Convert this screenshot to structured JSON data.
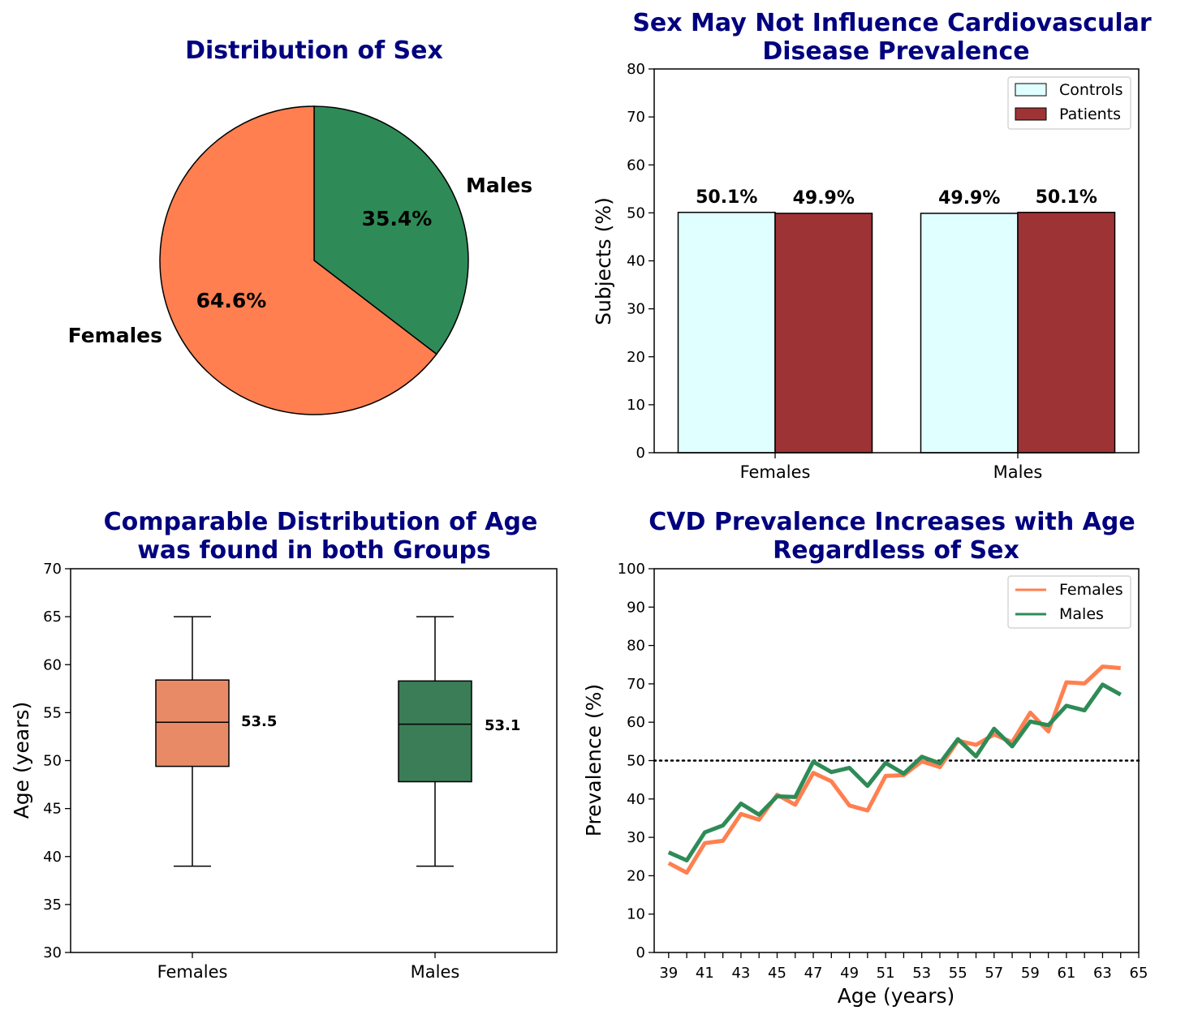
{
  "colors": {
    "title": "#00007f",
    "females": "#ff7f50",
    "males": "#2e8b57",
    "controls": "#e0ffff",
    "patients": "#9e3336",
    "box_females": "#e98a66",
    "box_males": "#3a7d57"
  },
  "chart_data": [
    {
      "type": "pie",
      "title": "Distribution of Sex",
      "labels": [
        "Males",
        "Females"
      ],
      "values": [
        35.4,
        64.6
      ],
      "pct_labels": [
        "35.4%",
        "64.6%"
      ]
    },
    {
      "type": "bar",
      "title_lines": [
        "Sex May Not Influence Cardiovascular",
        "Disease Prevalence"
      ],
      "categories": [
        "Females",
        "Males"
      ],
      "series": [
        {
          "name": "Controls",
          "values": [
            50.1,
            49.9
          ],
          "labels": [
            "50.1%",
            "49.9%"
          ]
        },
        {
          "name": "Patients",
          "values": [
            49.9,
            50.1
          ],
          "labels": [
            "49.9%",
            "50.1%"
          ]
        }
      ],
      "ylabel": "Subjects (%)",
      "ylim": [
        0,
        80
      ],
      "yticks": [
        0,
        10,
        20,
        30,
        40,
        50,
        60,
        70,
        80
      ],
      "legend": "top-right"
    },
    {
      "type": "box",
      "title_lines": [
        "Comparable Distribution of Age",
        "was found in both Groups"
      ],
      "categories": [
        "Females",
        "Males"
      ],
      "ylabel": "Age (years)",
      "ylim": [
        30,
        70
      ],
      "yticks": [
        30,
        35,
        40,
        45,
        50,
        55,
        60,
        65,
        70
      ],
      "boxes": [
        {
          "min": 39,
          "q1": 49.4,
          "median": 54,
          "q3": 58.4,
          "max": 65,
          "mean_label": "53.5"
        },
        {
          "min": 39,
          "q1": 47.8,
          "median": 53.8,
          "q3": 58.3,
          "max": 65,
          "mean_label": "53.1"
        }
      ]
    },
    {
      "type": "line",
      "title_lines": [
        "CVD Prevalence Increases with Age",
        "Regardless of Sex"
      ],
      "xlabel": "Age (years)",
      "ylabel": "Prevalence (%)",
      "xlim": [
        38.2,
        65.0
      ],
      "ylim": [
        0,
        100
      ],
      "xticks": [
        39,
        41,
        43,
        45,
        47,
        49,
        51,
        53,
        55,
        57,
        59,
        61,
        63,
        65
      ],
      "yticks": [
        0,
        10,
        20,
        30,
        40,
        50,
        60,
        70,
        80,
        90,
        100
      ],
      "reference_line": 50,
      "legend": "top-right",
      "x": [
        39,
        40,
        41,
        42,
        43,
        44,
        45,
        46,
        47,
        48,
        49,
        50,
        51,
        52,
        53,
        54,
        55,
        56,
        57,
        58,
        59,
        60,
        61,
        62,
        63,
        64
      ],
      "series": [
        {
          "name": "Females",
          "values": [
            23.3,
            20.8,
            28.5,
            29.1,
            36.1,
            34.6,
            41.1,
            38.5,
            46.8,
            44.6,
            38.3,
            37.0,
            46.0,
            46.2,
            49.8,
            48.3,
            55.2,
            54.1,
            56.8,
            54.8,
            62.5,
            57.6,
            70.4,
            70.1,
            74.5,
            74.1
          ]
        },
        {
          "name": "Males",
          "values": [
            26.1,
            24.0,
            31.3,
            33.1,
            38.8,
            35.9,
            40.7,
            40.5,
            49.7,
            47.0,
            48.1,
            43.4,
            49.4,
            46.6,
            51.0,
            49.3,
            55.6,
            51.1,
            58.3,
            53.7,
            60.2,
            59.2,
            64.3,
            63.1,
            69.8,
            67.2
          ]
        }
      ]
    }
  ]
}
